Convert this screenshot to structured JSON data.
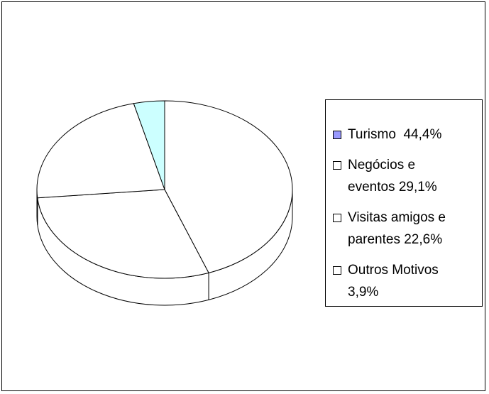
{
  "chart_data": {
    "type": "pie",
    "categories": [
      "Turismo  44,4%",
      "Negócios e eventos 29,1%",
      "Visitas amigos e parentes 22,6%",
      "Outros Motivos 3,9%"
    ],
    "values": [
      44.4,
      29.1,
      22.6,
      3.9
    ],
    "colors": [
      "#ffffff",
      "#ffffff",
      "#ffffff",
      "#ccffff"
    ],
    "legend_colors": [
      "#9999ff",
      "#ffffff",
      "#ffffff",
      "#ffffff"
    ],
    "legend": "right"
  }
}
